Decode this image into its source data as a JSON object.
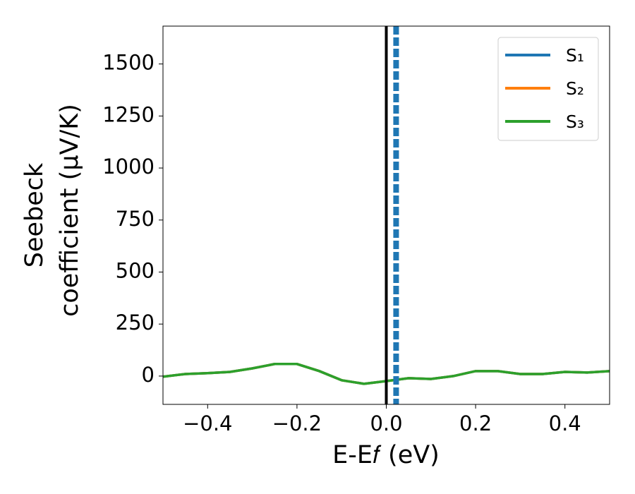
{
  "chart_data": {
    "type": "line",
    "x_label": "E-E𝑓 (eV)",
    "y_label": [
      "Seebeck",
      "coefficient (μV/K)"
    ],
    "x": [
      -0.5,
      -0.45,
      -0.4,
      -0.35,
      -0.3,
      -0.25,
      -0.2,
      -0.15,
      -0.1,
      -0.05,
      0.0,
      0.05,
      0.1,
      0.15,
      0.2,
      0.25,
      0.3,
      0.35,
      0.4,
      0.45,
      0.5
    ],
    "series": [
      {
        "name": "S₁",
        "color": "#1f77b4",
        "values": [
          -3,
          10,
          14,
          20,
          37,
          58,
          58,
          24,
          -20,
          -37,
          -24,
          -10,
          -14,
          0,
          24,
          24,
          10,
          10,
          20,
          17,
          24
        ]
      },
      {
        "name": "S₂",
        "color": "#ff7f0e",
        "values": [
          -3,
          10,
          14,
          20,
          37,
          58,
          58,
          24,
          -20,
          -37,
          -24,
          -10,
          -14,
          0,
          24,
          24,
          10,
          10,
          20,
          17,
          24
        ]
      },
      {
        "name": "S₃",
        "color": "#2ca02c",
        "values": [
          -3,
          10,
          14,
          20,
          37,
          58,
          58,
          24,
          -20,
          -37,
          -24,
          -10,
          -14,
          0,
          24,
          24,
          10,
          10,
          20,
          17,
          24
        ]
      }
    ],
    "vlines": [
      {
        "x": 0,
        "color": "#000000",
        "style": "solid"
      },
      {
        "x": 0.022,
        "color": "#1f77b4",
        "style": "dashed"
      }
    ],
    "xlim": [
      -0.5,
      0.5
    ],
    "xticks": [
      {
        "value": -0.4,
        "label": "−0.4"
      },
      {
        "value": -0.2,
        "label": "−0.2"
      },
      {
        "value": 0,
        "label": "0.0"
      },
      0.2,
      0.4
    ],
    "ylim": [
      -136,
      1682
    ],
    "yticks": [
      0,
      250,
      500,
      750,
      1000,
      1250,
      1500
    ],
    "legend": "upper right",
    "grid": false
  }
}
